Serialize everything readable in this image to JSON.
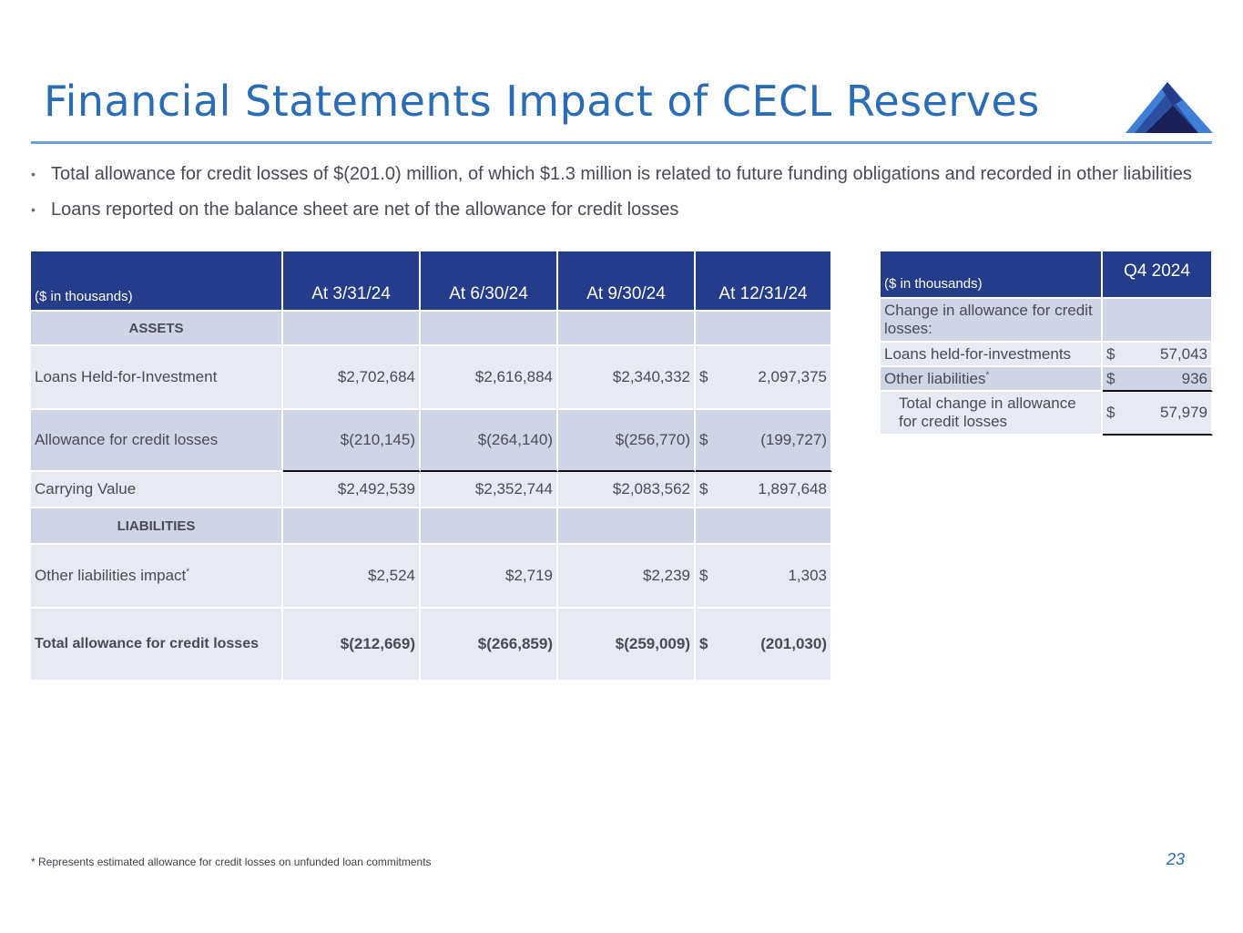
{
  "title": "Financial Statements Impact of CECL Reserves",
  "bullets": [
    "Total allowance for credit losses of $(201.0) million, of which $1.3 million is related to future funding obligations and recorded in other liabilities",
    "Loans reported on the balance sheet are net of the allowance for credit losses"
  ],
  "main_table": {
    "headers": [
      "($ in thousands)",
      "At 3/31/24",
      "At 6/30/24",
      "At 9/30/24",
      "At 12/31/24"
    ],
    "assets_label": "ASSETS",
    "liabilities_label": "LIABILITIES",
    "loans": {
      "label": "Loans Held-for-Investment",
      "q1": "$2,702,684",
      "q2": "$2,616,884",
      "q3": "$2,340,332",
      "q4_sym": "$",
      "q4": "2,097,375"
    },
    "allowance": {
      "label": "Allowance for credit losses",
      "q1": "$(210,145)",
      "q2": "$(264,140)",
      "q3": "$(256,770)",
      "q4_sym": "$",
      "q4": "(199,727)"
    },
    "carrying": {
      "label": "Carrying Value",
      "q1": "$2,492,539",
      "q2": "$2,352,744",
      "q3": "$2,083,562",
      "q4_sym": "$",
      "q4": "1,897,648"
    },
    "other_liab": {
      "label": "Other liabilities impact",
      "sup": "*",
      "q1": "$2,524",
      "q2": "$2,719",
      "q3": "$2,239",
      "q4_sym": "$",
      "q4": "1,303"
    },
    "total": {
      "label": "Total allowance for credit losses",
      "q1": "$(212,669)",
      "q2": "$(266,859)",
      "q3": "$(259,009)",
      "q4_sym": "$",
      "q4": "(201,030)"
    }
  },
  "side_table": {
    "headers": [
      "($ in thousands)",
      "Q4 2024"
    ],
    "change_label": "Change in allowance for credit losses:",
    "loans": {
      "label": "Loans held-for-investments",
      "sym": "$",
      "value": "57,043"
    },
    "other": {
      "label": "Other liabilities",
      "sup": "*",
      "sym": "$",
      "value": "936"
    },
    "total": {
      "label": "Total change in allowance for credit losses",
      "sym": "$",
      "value": "57,979"
    }
  },
  "footnote": "* Represents estimated allowance for credit losses on unfunded loan commitments",
  "page_number": "23",
  "colors": {
    "title": "#2a6db5",
    "header_bg": "#233d8a",
    "band_dark": "#d0d5e6",
    "band_light": "#e8eaf3"
  },
  "logo_icon": "mountain-logo-icon"
}
